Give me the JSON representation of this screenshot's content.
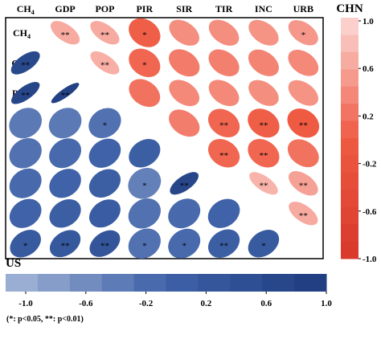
{
  "chart_data": {
    "type": "heatmap",
    "variables": [
      "CH4",
      "GDP",
      "POP",
      "PIR",
      "SIR",
      "TIR",
      "INC",
      "URB"
    ],
    "upper_triangle_region": "CHN",
    "lower_triangle_region": "US",
    "colorbars": {
      "right": {
        "title": "CHN",
        "ticks": [
          "1.0",
          "0.6",
          "0.2",
          "-0.2",
          "-0.6",
          "-1.0"
        ],
        "orientation": "vertical"
      },
      "bottom": {
        "title": "US",
        "ticks": [
          "-1.0",
          "-0.6",
          "-0.2",
          "0.2",
          "0.6",
          "1.0"
        ],
        "orientation": "horizontal"
      }
    },
    "upper": [
      {
        "row": "CH4",
        "col": "GDP",
        "r": 0.84,
        "sig": "**"
      },
      {
        "row": "CH4",
        "col": "POP",
        "r": 0.84,
        "sig": "**"
      },
      {
        "row": "CH4",
        "col": "PIR",
        "r": 0.52,
        "sig": "*"
      },
      {
        "row": "CH4",
        "col": "SIR",
        "r": 0.72,
        "sig": ""
      },
      {
        "row": "CH4",
        "col": "TIR",
        "r": 0.72,
        "sig": ""
      },
      {
        "row": "CH4",
        "col": "INC",
        "r": 0.74,
        "sig": ""
      },
      {
        "row": "CH4",
        "col": "URB",
        "r": 0.76,
        "sig": "*"
      },
      {
        "row": "GDP",
        "col": "POP",
        "r": 0.86,
        "sig": "**"
      },
      {
        "row": "GDP",
        "col": "PIR",
        "r": 0.55,
        "sig": "*"
      },
      {
        "row": "GDP",
        "col": "SIR",
        "r": 0.64,
        "sig": ""
      },
      {
        "row": "GDP",
        "col": "TIR",
        "r": 0.66,
        "sig": ""
      },
      {
        "row": "GDP",
        "col": "INC",
        "r": 0.68,
        "sig": ""
      },
      {
        "row": "GDP",
        "col": "URB",
        "r": 0.7,
        "sig": ""
      },
      {
        "row": "POP",
        "col": "PIR",
        "r": 0.6,
        "sig": ""
      },
      {
        "row": "POP",
        "col": "SIR",
        "r": 0.7,
        "sig": ""
      },
      {
        "row": "POP",
        "col": "TIR",
        "r": 0.7,
        "sig": ""
      },
      {
        "row": "POP",
        "col": "INC",
        "r": 0.72,
        "sig": ""
      },
      {
        "row": "POP",
        "col": "URB",
        "r": 0.74,
        "sig": ""
      },
      {
        "row": "PIR",
        "col": "SIR",
        "r": 0.65,
        "sig": ""
      },
      {
        "row": "PIR",
        "col": "TIR",
        "r": 0.55,
        "sig": "**"
      },
      {
        "row": "PIR",
        "col": "INC",
        "r": 0.52,
        "sig": "**"
      },
      {
        "row": "PIR",
        "col": "URB",
        "r": 0.5,
        "sig": "**"
      },
      {
        "row": "SIR",
        "col": "TIR",
        "r": 0.55,
        "sig": "**"
      },
      {
        "row": "SIR",
        "col": "INC",
        "r": 0.55,
        "sig": "**"
      },
      {
        "row": "SIR",
        "col": "URB",
        "r": 0.6,
        "sig": ""
      },
      {
        "row": "TIR",
        "col": "INC",
        "r": 0.88,
        "sig": "**"
      },
      {
        "row": "TIR",
        "col": "URB",
        "r": 0.8,
        "sig": "**"
      },
      {
        "row": "INC",
        "col": "URB",
        "r": 0.84,
        "sig": "**"
      }
    ],
    "lower": [
      {
        "row": "GDP",
        "col": "CH4",
        "r": 0.86,
        "sig": "**"
      },
      {
        "row": "POP",
        "col": "CH4",
        "r": 0.9,
        "sig": "**"
      },
      {
        "row": "POP",
        "col": "GDP",
        "r": 0.96,
        "sig": "**"
      },
      {
        "row": "PIR",
        "col": "CH4",
        "r": 0.35,
        "sig": ""
      },
      {
        "row": "PIR",
        "col": "GDP",
        "r": 0.35,
        "sig": ""
      },
      {
        "row": "PIR",
        "col": "POP",
        "r": 0.4,
        "sig": "*"
      },
      {
        "row": "SIR",
        "col": "CH4",
        "r": 0.4,
        "sig": ""
      },
      {
        "row": "SIR",
        "col": "GDP",
        "r": 0.45,
        "sig": ""
      },
      {
        "row": "SIR",
        "col": "POP",
        "r": 0.5,
        "sig": ""
      },
      {
        "row": "SIR",
        "col": "PIR",
        "r": 0.55,
        "sig": ""
      },
      {
        "row": "TIR",
        "col": "CH4",
        "r": 0.45,
        "sig": ""
      },
      {
        "row": "TIR",
        "col": "GDP",
        "r": 0.5,
        "sig": ""
      },
      {
        "row": "TIR",
        "col": "POP",
        "r": 0.55,
        "sig": ""
      },
      {
        "row": "TIR",
        "col": "PIR",
        "r": 0.3,
        "sig": "*"
      },
      {
        "row": "TIR",
        "col": "SIR",
        "r": 0.88,
        "sig": "**"
      },
      {
        "row": "INC",
        "col": "CH4",
        "r": 0.5,
        "sig": ""
      },
      {
        "row": "INC",
        "col": "GDP",
        "r": 0.55,
        "sig": ""
      },
      {
        "row": "INC",
        "col": "POP",
        "r": 0.58,
        "sig": ""
      },
      {
        "row": "INC",
        "col": "PIR",
        "r": 0.4,
        "sig": ""
      },
      {
        "row": "INC",
        "col": "SIR",
        "r": 0.45,
        "sig": ""
      },
      {
        "row": "INC",
        "col": "TIR",
        "r": 0.5,
        "sig": ""
      },
      {
        "row": "URB",
        "col": "CH4",
        "r": 0.62,
        "sig": "*"
      },
      {
        "row": "URB",
        "col": "GDP",
        "r": 0.65,
        "sig": "**"
      },
      {
        "row": "URB",
        "col": "POP",
        "r": 0.68,
        "sig": "**"
      },
      {
        "row": "URB",
        "col": "PIR",
        "r": 0.4,
        "sig": "*"
      },
      {
        "row": "URB",
        "col": "SIR",
        "r": 0.45,
        "sig": "*"
      },
      {
        "row": "URB",
        "col": "TIR",
        "r": 0.55,
        "sig": "**"
      },
      {
        "row": "URB",
        "col": "INC",
        "r": 0.62,
        "sig": "*"
      }
    ]
  },
  "footnote": "(*: p<0.05, **: p<0.01)",
  "colors": {
    "chn_ramp": [
      "#fbd0cc",
      "#ef5a43",
      "#d93a2b"
    ],
    "us_ramp": [
      "#9aaed3",
      "#3f62a8",
      "#213f82"
    ]
  }
}
